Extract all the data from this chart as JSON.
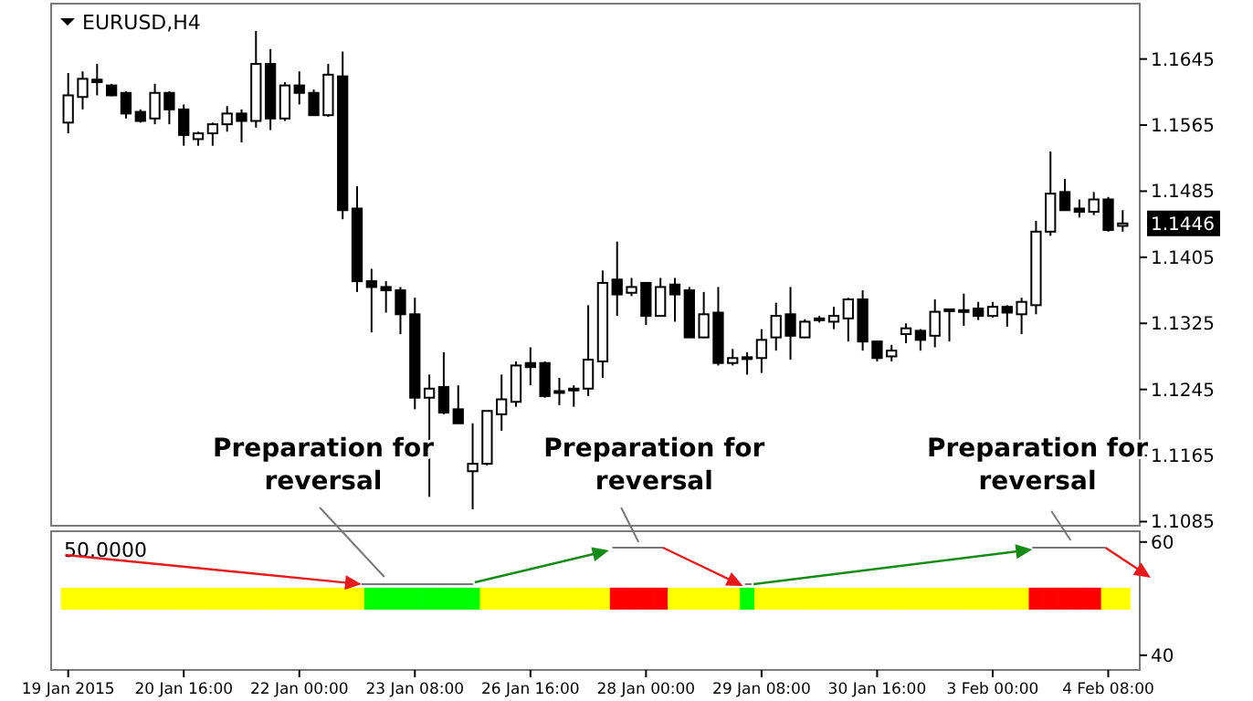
{
  "chart_data": [
    {
      "type": "candlestick",
      "title": "EURUSD,H4",
      "categories": [
        null,
        null,
        null,
        null,
        null,
        null,
        null,
        null,
        null,
        null,
        null,
        null,
        null,
        null,
        null,
        null,
        null,
        null,
        null,
        null,
        null,
        null,
        null,
        null,
        null,
        null,
        null,
        null,
        null,
        null,
        null,
        null,
        null,
        null,
        null,
        null,
        null,
        null,
        null,
        null,
        null,
        null,
        null,
        null,
        null,
        null,
        null,
        null,
        null,
        null,
        null,
        null,
        null,
        null,
        null,
        null,
        null,
        null,
        null,
        null,
        null,
        null,
        null,
        null,
        null,
        null,
        null,
        null,
        null,
        null,
        null,
        null,
        null,
        null
      ],
      "ohlc": [
        [
          1.1568,
          1.1628,
          1.1555,
          1.1601
        ],
        [
          1.1599,
          1.163,
          1.1584,
          1.1621
        ],
        [
          1.162,
          1.1639,
          1.1601,
          1.1617
        ],
        [
          1.1613,
          1.1615,
          1.16,
          1.1601
        ],
        [
          1.1604,
          1.1606,
          1.1573,
          1.1579
        ],
        [
          1.1581,
          1.1584,
          1.1568,
          1.157
        ],
        [
          1.1573,
          1.1615,
          1.1566,
          1.1604
        ],
        [
          1.1604,
          1.1606,
          1.1566,
          1.1584
        ],
        [
          1.1584,
          1.159,
          1.154,
          1.1553
        ],
        [
          1.1548,
          1.1557,
          1.154,
          1.1555
        ],
        [
          1.1555,
          1.1568,
          1.154,
          1.1566
        ],
        [
          1.1566,
          1.1588,
          1.1557,
          1.1579
        ],
        [
          1.1579,
          1.1584,
          1.1544,
          1.157
        ],
        [
          1.157,
          1.1679,
          1.1562,
          1.1639
        ],
        [
          1.1639,
          1.1657,
          1.1559,
          1.1573
        ],
        [
          1.1573,
          1.1617,
          1.157,
          1.1613
        ],
        [
          1.1613,
          1.163,
          1.159,
          1.1604
        ],
        [
          1.1604,
          1.1608,
          1.1577,
          1.1577
        ],
        [
          1.1577,
          1.1639,
          1.1575,
          1.1626
        ],
        [
          1.1624,
          1.1654,
          1.1451,
          1.1462
        ],
        [
          1.1464,
          1.1491,
          1.1363,
          1.1376
        ],
        [
          1.1376,
          1.1391,
          1.1314,
          1.1369
        ],
        [
          1.1369,
          1.1376,
          1.1338,
          1.1365
        ],
        [
          1.1365,
          1.1369,
          1.1312,
          1.1336
        ],
        [
          1.1336,
          1.1356,
          1.1221,
          1.1235
        ],
        [
          1.1235,
          1.1263,
          1.1115,
          1.1246
        ],
        [
          1.1248,
          1.129,
          1.1215,
          1.1217
        ],
        [
          1.1221,
          1.125,
          1.1204,
          1.1204
        ],
        [
          1.1146,
          1.1204,
          1.11,
          1.1155
        ],
        [
          1.1155,
          1.1219,
          1.1153,
          1.1219
        ],
        [
          1.1215,
          1.1263,
          1.1195,
          1.1233
        ],
        [
          1.123,
          1.1279,
          1.1224,
          1.1274
        ],
        [
          1.1277,
          1.1296,
          1.125,
          1.1272
        ],
        [
          1.1277,
          1.1279,
          1.1235,
          1.1237
        ],
        [
          1.1243,
          1.1259,
          1.1226,
          1.1241
        ],
        [
          1.1245,
          1.125,
          1.1224,
          1.1246
        ],
        [
          1.1246,
          1.1347,
          1.1237,
          1.1281
        ],
        [
          1.1279,
          1.1389,
          1.1259,
          1.1374
        ],
        [
          1.1378,
          1.1424,
          1.1334,
          1.136
        ],
        [
          1.1362,
          1.138,
          1.1358,
          1.1369
        ],
        [
          1.1374,
          1.1374,
          1.1323,
          1.1334
        ],
        [
          1.1334,
          1.138,
          1.1334,
          1.1369
        ],
        [
          1.1372,
          1.138,
          1.1327,
          1.136
        ],
        [
          1.1365,
          1.1369,
          1.1308,
          1.1308
        ],
        [
          1.1308,
          1.1363,
          1.1308,
          1.1336
        ],
        [
          1.1338,
          1.1369,
          1.1274,
          1.1277
        ],
        [
          1.1277,
          1.1294,
          1.1274,
          1.1283
        ],
        [
          1.1284,
          1.129,
          1.1263,
          1.1283
        ],
        [
          1.1283,
          1.1318,
          1.1265,
          1.1305
        ],
        [
          1.1308,
          1.135,
          1.1292,
          1.1334
        ],
        [
          1.1336,
          1.1369,
          1.1281,
          1.131
        ],
        [
          1.1308,
          1.133,
          1.1307,
          1.1327
        ],
        [
          1.1331,
          1.1334,
          1.1326,
          1.133
        ],
        [
          1.1327,
          1.1345,
          1.1318,
          1.1334
        ],
        [
          1.1331,
          1.1356,
          1.1303,
          1.1354
        ],
        [
          1.1354,
          1.1365,
          1.1292,
          1.1303
        ],
        [
          1.1303,
          1.1303,
          1.1279,
          1.1283
        ],
        [
          1.1285,
          1.1299,
          1.1279,
          1.1292
        ],
        [
          1.1312,
          1.1325,
          1.1301,
          1.1319
        ],
        [
          1.1316,
          1.1318,
          1.1292,
          1.1305
        ],
        [
          1.131,
          1.1354,
          1.1296,
          1.1339
        ],
        [
          1.1342,
          1.1343,
          1.1303,
          1.134
        ],
        [
          1.1341,
          1.1361,
          1.1322,
          1.134
        ],
        [
          1.1343,
          1.1351,
          1.1329,
          1.1334
        ],
        [
          1.1334,
          1.1351,
          1.1332,
          1.1345
        ],
        [
          1.1345,
          1.1347,
          1.1321,
          1.1338
        ],
        [
          1.1336,
          1.1356,
          1.1312,
          1.1351
        ],
        [
          1.1347,
          1.1449,
          1.1336,
          1.1436
        ],
        [
          1.1436,
          1.1533,
          1.1431,
          1.1482
        ],
        [
          1.1484,
          1.15,
          1.1462,
          1.1462
        ],
        [
          1.1464,
          1.1475,
          1.1453,
          1.146
        ],
        [
          1.146,
          1.1484,
          1.1456,
          1.1475
        ],
        [
          1.1475,
          1.1478,
          1.1436,
          1.1438
        ],
        [
          1.1443,
          1.1462,
          1.1436,
          1.1446
        ]
      ],
      "ylim": [
        1.108,
        1.1712
      ],
      "yticks": [
        1.1085,
        1.1165,
        1.1245,
        1.1325,
        1.1405,
        1.1485,
        1.1565,
        1.1645
      ],
      "tick_labels": "y",
      "annotations": [
        "Preparation for reversal",
        "Preparation for reversal",
        "Preparation for reversal",
        "1.1446"
      ]
    },
    {
      "type": "scatter",
      "title": "50.0000",
      "marker": "square",
      "categories": [
        "19 Jan 2015",
        null,
        null,
        null,
        null,
        null,
        null,
        null,
        "20 Jan 16:00",
        null,
        null,
        null,
        null,
        null,
        null,
        null,
        "22 Jan 00:00",
        null,
        null,
        null,
        null,
        null,
        null,
        null,
        "23 Jan 08:00",
        null,
        null,
        null,
        null,
        null,
        null,
        null,
        "26 Jan 16:00",
        null,
        null,
        null,
        null,
        null,
        null,
        null,
        "28 Jan 00:00",
        null,
        null,
        null,
        null,
        null,
        null,
        null,
        "29 Jan 08:00",
        null,
        null,
        null,
        null,
        null,
        null,
        null,
        "30 Jan 16:00",
        null,
        null,
        null,
        null,
        null,
        null,
        null,
        "3 Feb 00:00",
        null,
        null,
        null,
        null,
        null,
        null,
        null,
        "4 Feb 08:00",
        null
      ],
      "values": [
        50,
        50,
        50,
        50,
        50,
        50,
        50,
        50,
        50,
        50,
        50,
        50,
        50,
        50,
        50,
        50,
        50,
        50,
        50,
        50,
        50,
        50,
        50,
        50,
        50,
        50,
        50,
        50,
        50,
        50,
        50,
        50,
        50,
        50,
        50,
        50,
        50,
        50,
        50,
        50,
        50,
        50,
        50,
        50,
        50,
        50,
        50,
        50,
        50,
        50,
        50,
        50,
        50,
        50,
        50,
        50,
        50,
        50,
        50,
        50,
        50,
        50,
        50,
        50,
        50,
        50,
        50,
        50,
        50,
        50,
        50,
        50,
        50,
        50
      ],
      "colors": [
        "#ffff00",
        "#ffff00",
        "#ffff00",
        "#ffff00",
        "#ffff00",
        "#ffff00",
        "#ffff00",
        "#ffff00",
        "#ffff00",
        "#ffff00",
        "#ffff00",
        "#ffff00",
        "#ffff00",
        "#ffff00",
        "#ffff00",
        "#ffff00",
        "#ffff00",
        "#ffff00",
        "#ffff00",
        "#ffff00",
        "#ffff00",
        "#00ff00",
        "#00ff00",
        "#00ff00",
        "#00ff00",
        "#00ff00",
        "#00ff00",
        "#00ff00",
        "#00ff00",
        "#ffff00",
        "#ffff00",
        "#ffff00",
        "#ffff00",
        "#ffff00",
        "#ffff00",
        "#ffff00",
        "#ffff00",
        "#ffff00",
        "#ff0000",
        "#ff0000",
        "#ff0000",
        "#ff0000",
        "#ffff00",
        "#ffff00",
        "#ffff00",
        "#ffff00",
        "#ffff00",
        "#00ff00",
        "#ffff00",
        "#ffff00",
        "#ffff00",
        "#ffff00",
        "#ffff00",
        "#ffff00",
        "#ffff00",
        "#ffff00",
        "#ffff00",
        "#ffff00",
        "#ffff00",
        "#ffff00",
        "#ffff00",
        "#ffff00",
        "#ffff00",
        "#ffff00",
        "#ffff00",
        "#ffff00",
        "#ffff00",
        "#ff0000",
        "#ff0000",
        "#ff0000",
        "#ff0000",
        "#ff0000",
        "#ffff00",
        "#ffff00"
      ],
      "ylim": [
        37.4,
        61.9
      ],
      "yticks": [
        40,
        60
      ]
    }
  ]
}
